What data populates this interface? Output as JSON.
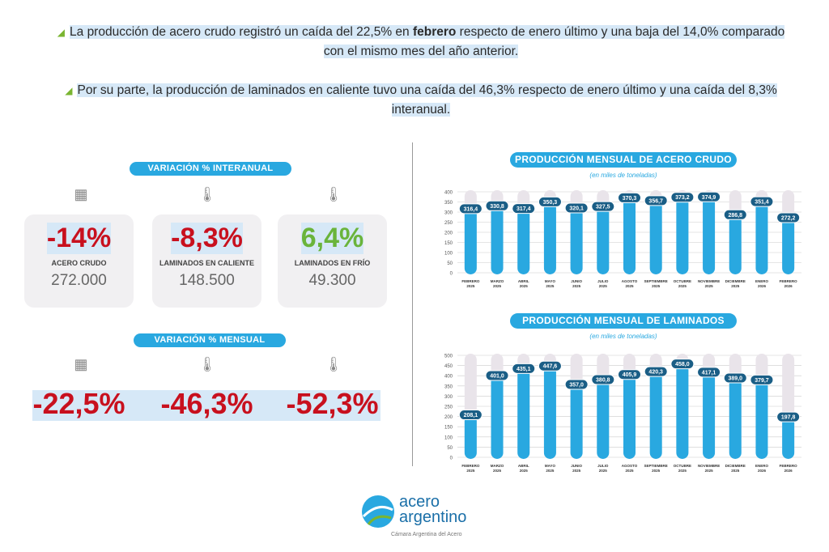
{
  "header": {
    "p1_a": "La producción de acero crudo registró un caída del 22,5% en ",
    "p1_bold": "febrero",
    "p1_b": " respecto de enero último y una baja del 14,0% comparado con el mismo mes del año anterior.",
    "p2": "Por su parte, la producción de laminados en caliente tuvo una caída del 46,3% respecto de enero último y una caída del 8,3% interanual."
  },
  "interanual": {
    "title": "VARIACIÓN %  INTERANUAL",
    "cards": [
      {
        "pct": "-14%",
        "label": "ACERO CRUDO",
        "value": "272.000"
      },
      {
        "pct": "-8,3%",
        "label": "LAMINADOS EN CALIENTE",
        "value": "148.500"
      },
      {
        "pct": "6,4%",
        "label": "LAMINADOS EN FRÍO",
        "value": "49.300"
      }
    ]
  },
  "mensual": {
    "title": "VARIACIÓN % MENSUAL",
    "cards": [
      {
        "pct": "-22,5%"
      },
      {
        "pct": "-46,3%"
      },
      {
        "pct": "-52,3%"
      }
    ]
  },
  "logo": {
    "line1": "acero",
    "line2": "argentino",
    "tagline": "Cámara Argentina del Acero"
  },
  "colors": {
    "bar": "#29a8e0",
    "track": "#e9e4ea",
    "label_bg": "#1a5e86",
    "red": "#c8101e",
    "green": "#6ab43b"
  },
  "chart_data": [
    {
      "type": "bar",
      "title": "PRODUCCIÓN MENSUAL DE ACERO CRUDO",
      "subtitle": "(en miles de toneladas)",
      "categories": [
        [
          "FEBRERO",
          "2025"
        ],
        [
          "MARZO",
          "2025"
        ],
        [
          "ABRIL",
          "2025"
        ],
        [
          "MAYO",
          "2025"
        ],
        [
          "JUNIO",
          "2025"
        ],
        [
          "JULIO",
          "2025"
        ],
        [
          "AGOSTO",
          "2025"
        ],
        [
          "SEPTIEMBRE",
          "2025"
        ],
        [
          "OCTUBRE",
          "2025"
        ],
        [
          "NOVIEMBRE",
          "2025"
        ],
        [
          "DICIEMBRE",
          "2025"
        ],
        [
          "ENERO",
          "2026"
        ],
        [
          "FEBRERO",
          "2026"
        ]
      ],
      "values": [
        316.4,
        330.8,
        317.4,
        350.3,
        320.1,
        327.5,
        370.3,
        356.7,
        373.2,
        374.9,
        286.8,
        351.4,
        272.2
      ],
      "labels": [
        "316,4",
        "330,8",
        "317,4",
        "350,3",
        "320,1",
        "327,5",
        "370,3",
        "356,7",
        "373,2",
        "374,9",
        "286,8",
        "351,4",
        "272,2"
      ],
      "ylim": [
        0,
        400
      ],
      "yticks": [
        0,
        50,
        100,
        150,
        200,
        250,
        300,
        350,
        400
      ],
      "grid": true
    },
    {
      "type": "bar",
      "title": "PRODUCCIÓN MENSUAL DE LAMINADOS",
      "subtitle": "(en miles de toneladas)",
      "categories": [
        [
          "FEBRERO",
          "2025"
        ],
        [
          "MARZO",
          "2025"
        ],
        [
          "ABRIL",
          "2025"
        ],
        [
          "MAYO",
          "2025"
        ],
        [
          "JUNIO",
          "2025"
        ],
        [
          "JULIO",
          "2025"
        ],
        [
          "AGOSTO",
          "2025"
        ],
        [
          "SEPTIEMBRE",
          "2025"
        ],
        [
          "OCTUBRE",
          "2025"
        ],
        [
          "NOVIEMBRE",
          "2025"
        ],
        [
          "DICIEMBRE",
          "2025"
        ],
        [
          "ENERO",
          "2026"
        ],
        [
          "FEBRERO",
          "2026"
        ]
      ],
      "values": [
        208.1,
        401.0,
        435.1,
        447.6,
        357.0,
        380.8,
        405.9,
        420.3,
        458.0,
        417.1,
        389.0,
        379.7,
        197.8
      ],
      "labels": [
        "208,1",
        "401,0",
        "435,1",
        "447,6",
        "357,0",
        "380,8",
        "405,9",
        "420,3",
        "458,0",
        "417,1",
        "389,0",
        "379,7",
        "197,8"
      ],
      "ylim": [
        0,
        500
      ],
      "yticks": [
        0,
        50,
        100,
        150,
        200,
        250,
        300,
        350,
        400,
        450,
        500
      ],
      "grid": true
    }
  ]
}
